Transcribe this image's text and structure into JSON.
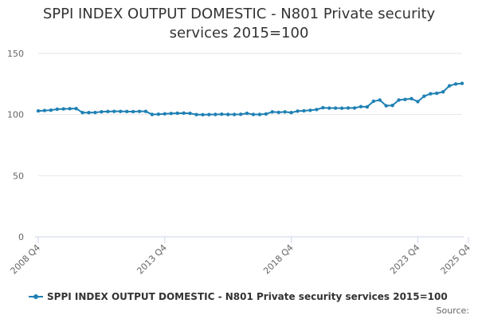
{
  "chart_data": {
    "type": "line",
    "title": "SPPI INDEX OUTPUT DOMESTIC - N801 Private security services 2015=100",
    "xlabel": "",
    "ylabel": "",
    "ylim": [
      0,
      150
    ],
    "yticks": [
      0,
      50,
      100,
      150
    ],
    "grid": true,
    "legend_position": "bottom",
    "x_start_quarter": "2008 Q4",
    "xtick_labels": [
      "2008 Q4",
      "2013 Q4",
      "2018 Q4",
      "2023 Q4",
      "2025 Q4"
    ],
    "xtick_indices": [
      0,
      20,
      40,
      60,
      68
    ],
    "series": [
      {
        "name": "SPPI INDEX OUTPUT DOMESTIC - N801 Private security services 2015=100",
        "color": "#1f80b4",
        "values": [
          103.0,
          103.3,
          103.6,
          104.4,
          104.6,
          104.8,
          104.9,
          101.6,
          101.6,
          101.7,
          102.3,
          102.5,
          102.6,
          102.6,
          102.5,
          102.4,
          102.6,
          102.6,
          100.1,
          100.3,
          100.6,
          100.9,
          101.1,
          101.2,
          101.0,
          100.0,
          99.9,
          100.0,
          100.1,
          100.3,
          100.1,
          100.1,
          100.2,
          101.0,
          100.1,
          100.1,
          100.5,
          102.2,
          101.8,
          102.2,
          101.6,
          102.8,
          103.1,
          103.5,
          104.1,
          105.6,
          105.3,
          105.3,
          105.2,
          105.4,
          105.4,
          106.5,
          106.3,
          110.9,
          111.9,
          107.2,
          107.5,
          111.9,
          112.4,
          113.0,
          110.6,
          115.0,
          117.0,
          117.4,
          118.6,
          123.5,
          125.0,
          125.5
        ]
      }
    ]
  },
  "credits": "Source:"
}
